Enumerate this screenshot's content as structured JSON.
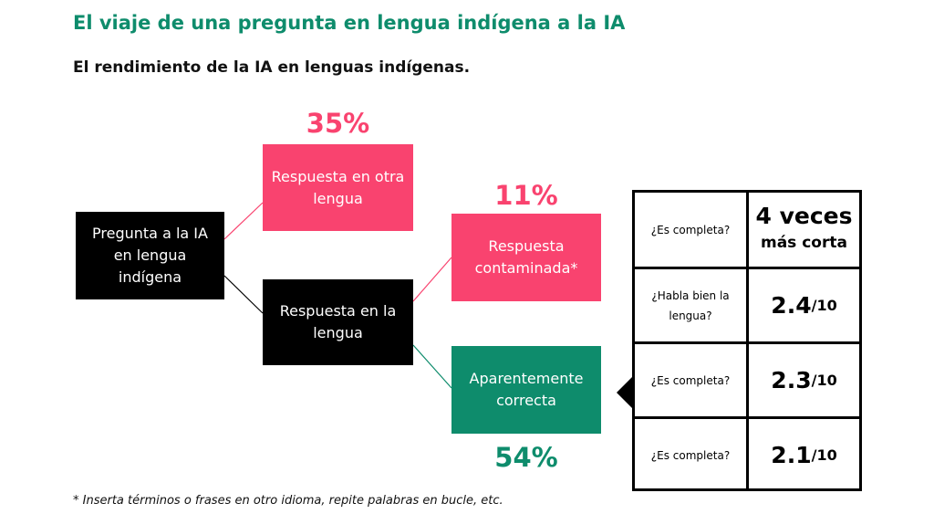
{
  "title": "El viaje de una pregunta en lengua indígena a la IA",
  "subtitle": "El rendimiento de la IA en lenguas indígenas.",
  "nodes": {
    "start": "Pregunta a la IA en lengua indígena",
    "other_language": "Respuesta en otra lengua",
    "in_language": "Respuesta en la lengua",
    "contaminated": "Respuesta contaminada*",
    "apparently_correct": "Aparentemente correcta"
  },
  "percentages": {
    "other_language": "35%",
    "contaminated": "11%",
    "apparently_correct": "54%"
  },
  "table": [
    {
      "question": "¿Es completa?",
      "value_main": "4 veces",
      "value_sub": "más corta"
    },
    {
      "question": "¿Habla bien la lengua?",
      "value_main": "2.4",
      "value_sub": "/10"
    },
    {
      "question": "¿Es completa?",
      "value_main": "2.3",
      "value_sub": "/10"
    },
    {
      "question": "¿Es completa?",
      "value_main": "2.1",
      "value_sub": "/10"
    }
  ],
  "footnote": "* Inserta términos o frases en otro idioma, repite palabras en bucle, etc.",
  "colors": {
    "green": "#0e8c6c",
    "pink": "#f9436f",
    "black": "#000000"
  }
}
